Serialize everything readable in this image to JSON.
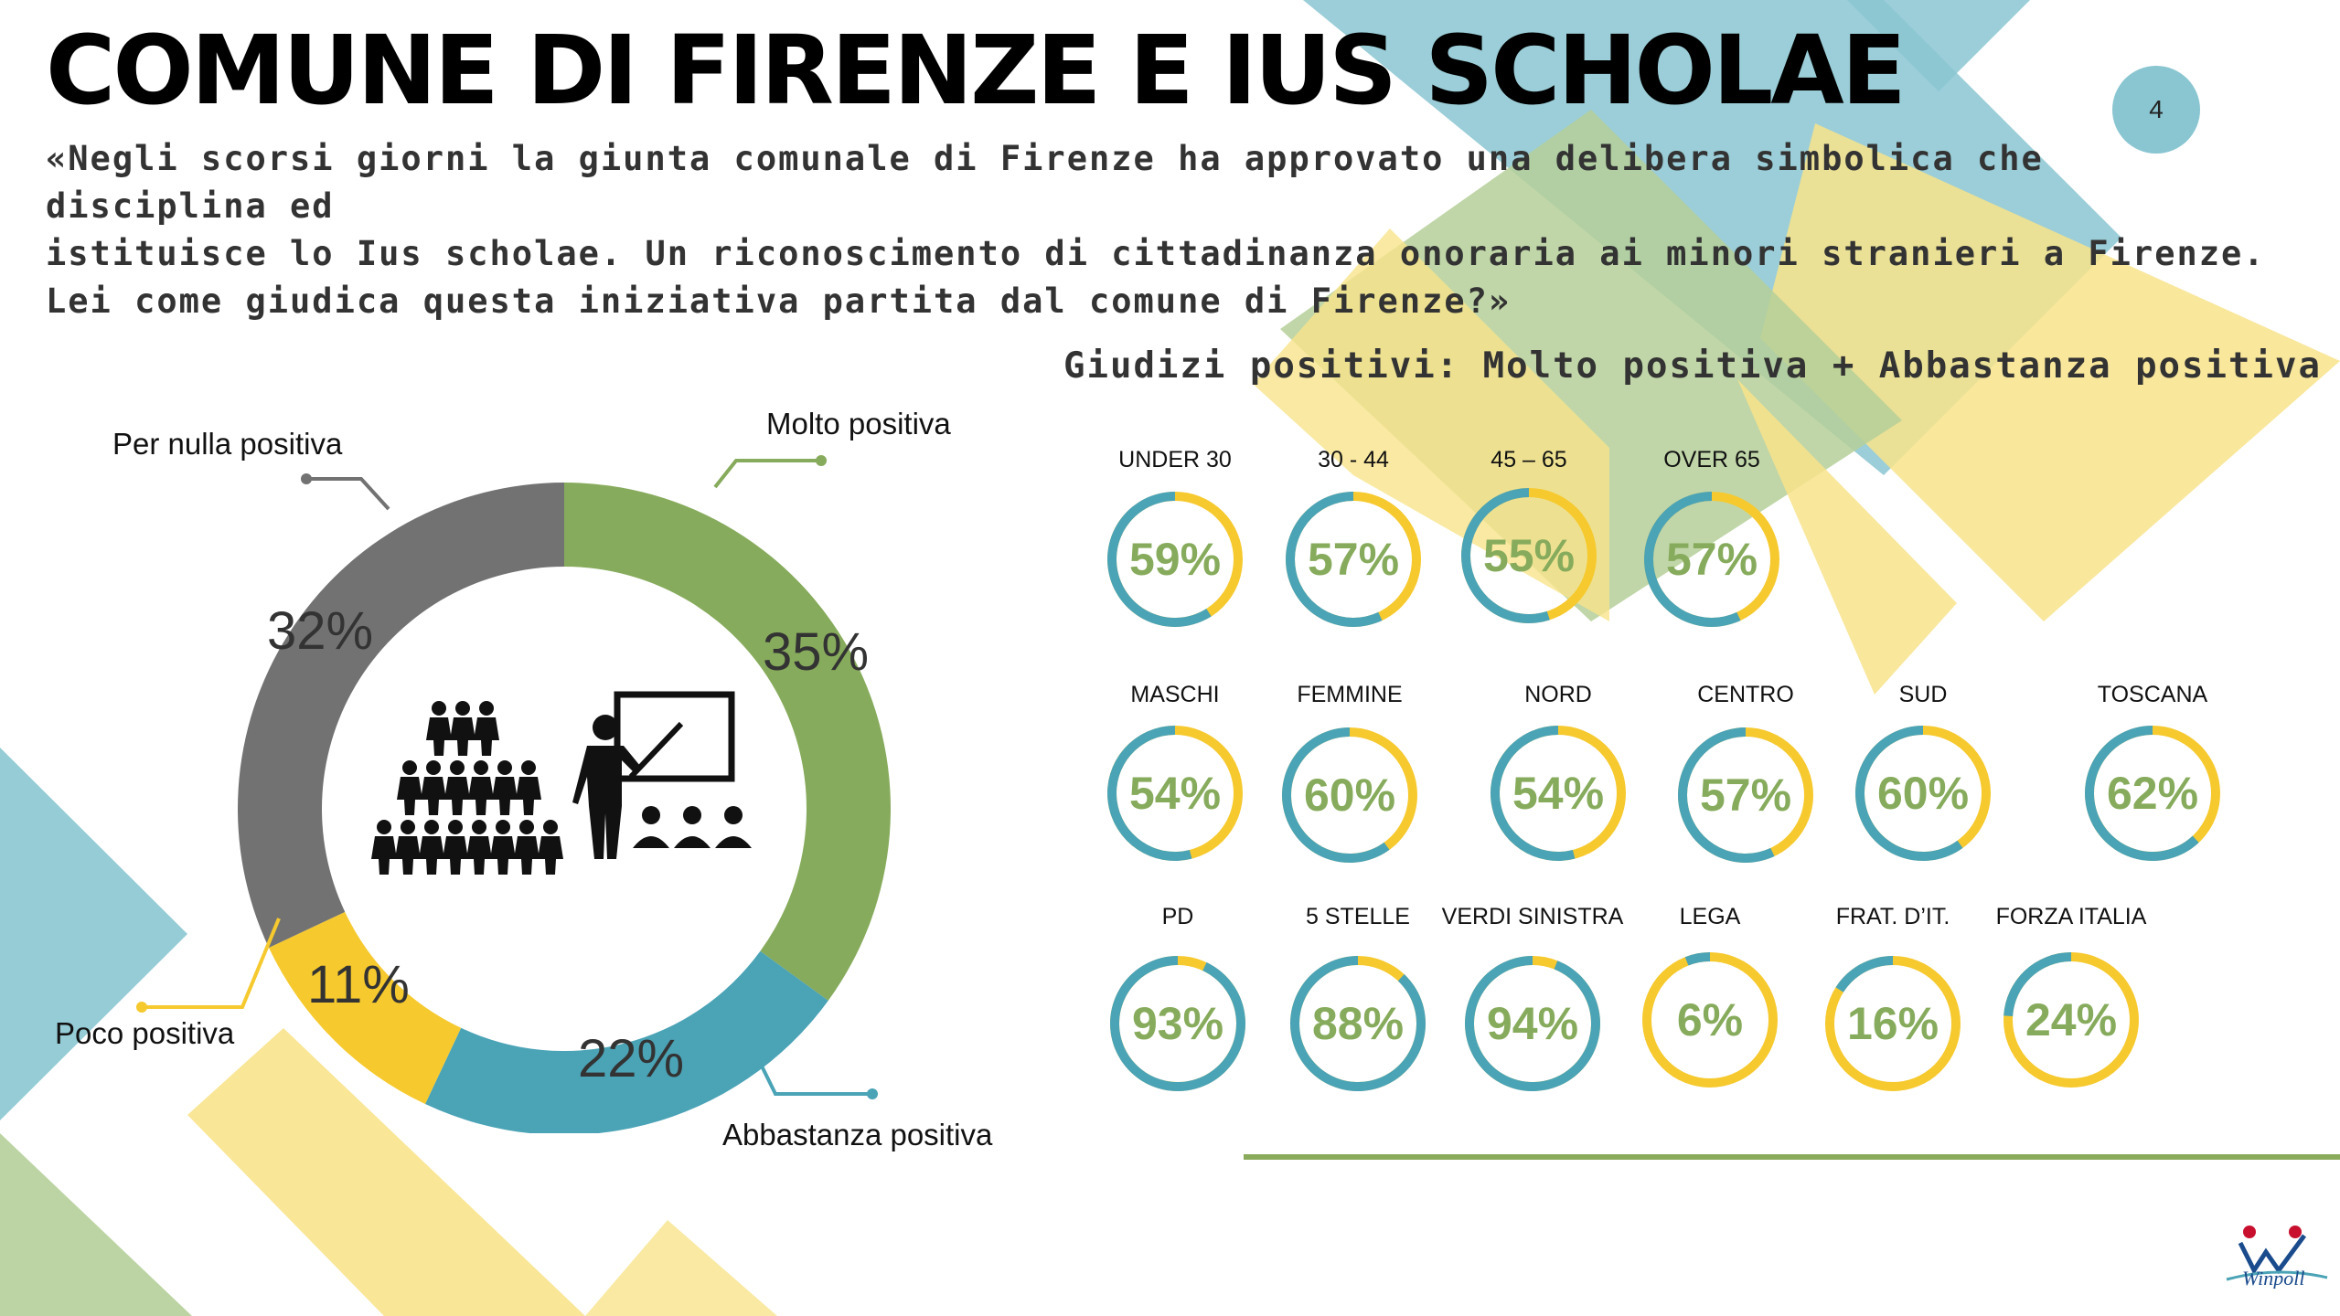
{
  "header": {
    "title": "COMUNE DI FIRENZE E IUS SCHOLAE",
    "question_lines": [
      "«Negli scorsi giorni la giunta comunale di Firenze ha approvato una delibera simbolica che disciplina ed",
      "istituisce lo Ius scholae. Un riconoscimento di cittadinanza onoraria ai minori stranieri a Firenze.",
      "Lei come giudica questa iniziativa partita dal comune di Firenze?»"
    ],
    "page_number": "4"
  },
  "colors": {
    "green": "#87ab5c",
    "teal": "#4ba3b6",
    "yellow": "#f6c92e",
    "grey": "#727272",
    "light_blue": "#8ac6d1",
    "light_yellow": "#f8e38b",
    "light_green": "#b5cf99"
  },
  "icons": [
    "students-group-icon",
    "teacher-at-board-icon"
  ],
  "chart_data": [
    {
      "type": "pie",
      "variant": "donut",
      "title": "",
      "categories": [
        "Molto positiva",
        "Abbastanza positiva",
        "Poco positiva",
        "Per nulla positiva"
      ],
      "values": [
        35,
        22,
        11,
        32
      ],
      "value_labels": [
        "35%",
        "22%",
        "11%",
        "32%"
      ],
      "colors": [
        "#87ab5c",
        "#4ba3b6",
        "#f6c92e",
        "#727272"
      ]
    },
    {
      "type": "pie",
      "variant": "small-multiple rings",
      "title": "Giudizi positivi: Molto positiva + Abbastanza positiva",
      "categories": [
        "UNDER 30",
        "30 - 44",
        "45 – 65",
        "OVER 65",
        "MASCHI",
        "FEMMINE",
        "NORD",
        "CENTRO",
        "SUD",
        "TOSCANA",
        "PD",
        "5 STELLE",
        "VERDI SINISTRA",
        "LEGA",
        "FRAT. D’IT.",
        "FORZA ITALIA"
      ],
      "values": [
        59,
        57,
        55,
        57,
        54,
        60,
        54,
        57,
        60,
        62,
        93,
        88,
        94,
        6,
        16,
        24
      ],
      "value_labels": [
        "59%",
        "57%",
        "55%",
        "57%",
        "54%",
        "60%",
        "54%",
        "57%",
        "60%",
        "62%",
        "93%",
        "88%",
        "94%",
        "6%",
        "16%",
        "24%"
      ],
      "positive_color": "#4ba3b6",
      "remainder_color": "#f6c92e"
    }
  ]
}
